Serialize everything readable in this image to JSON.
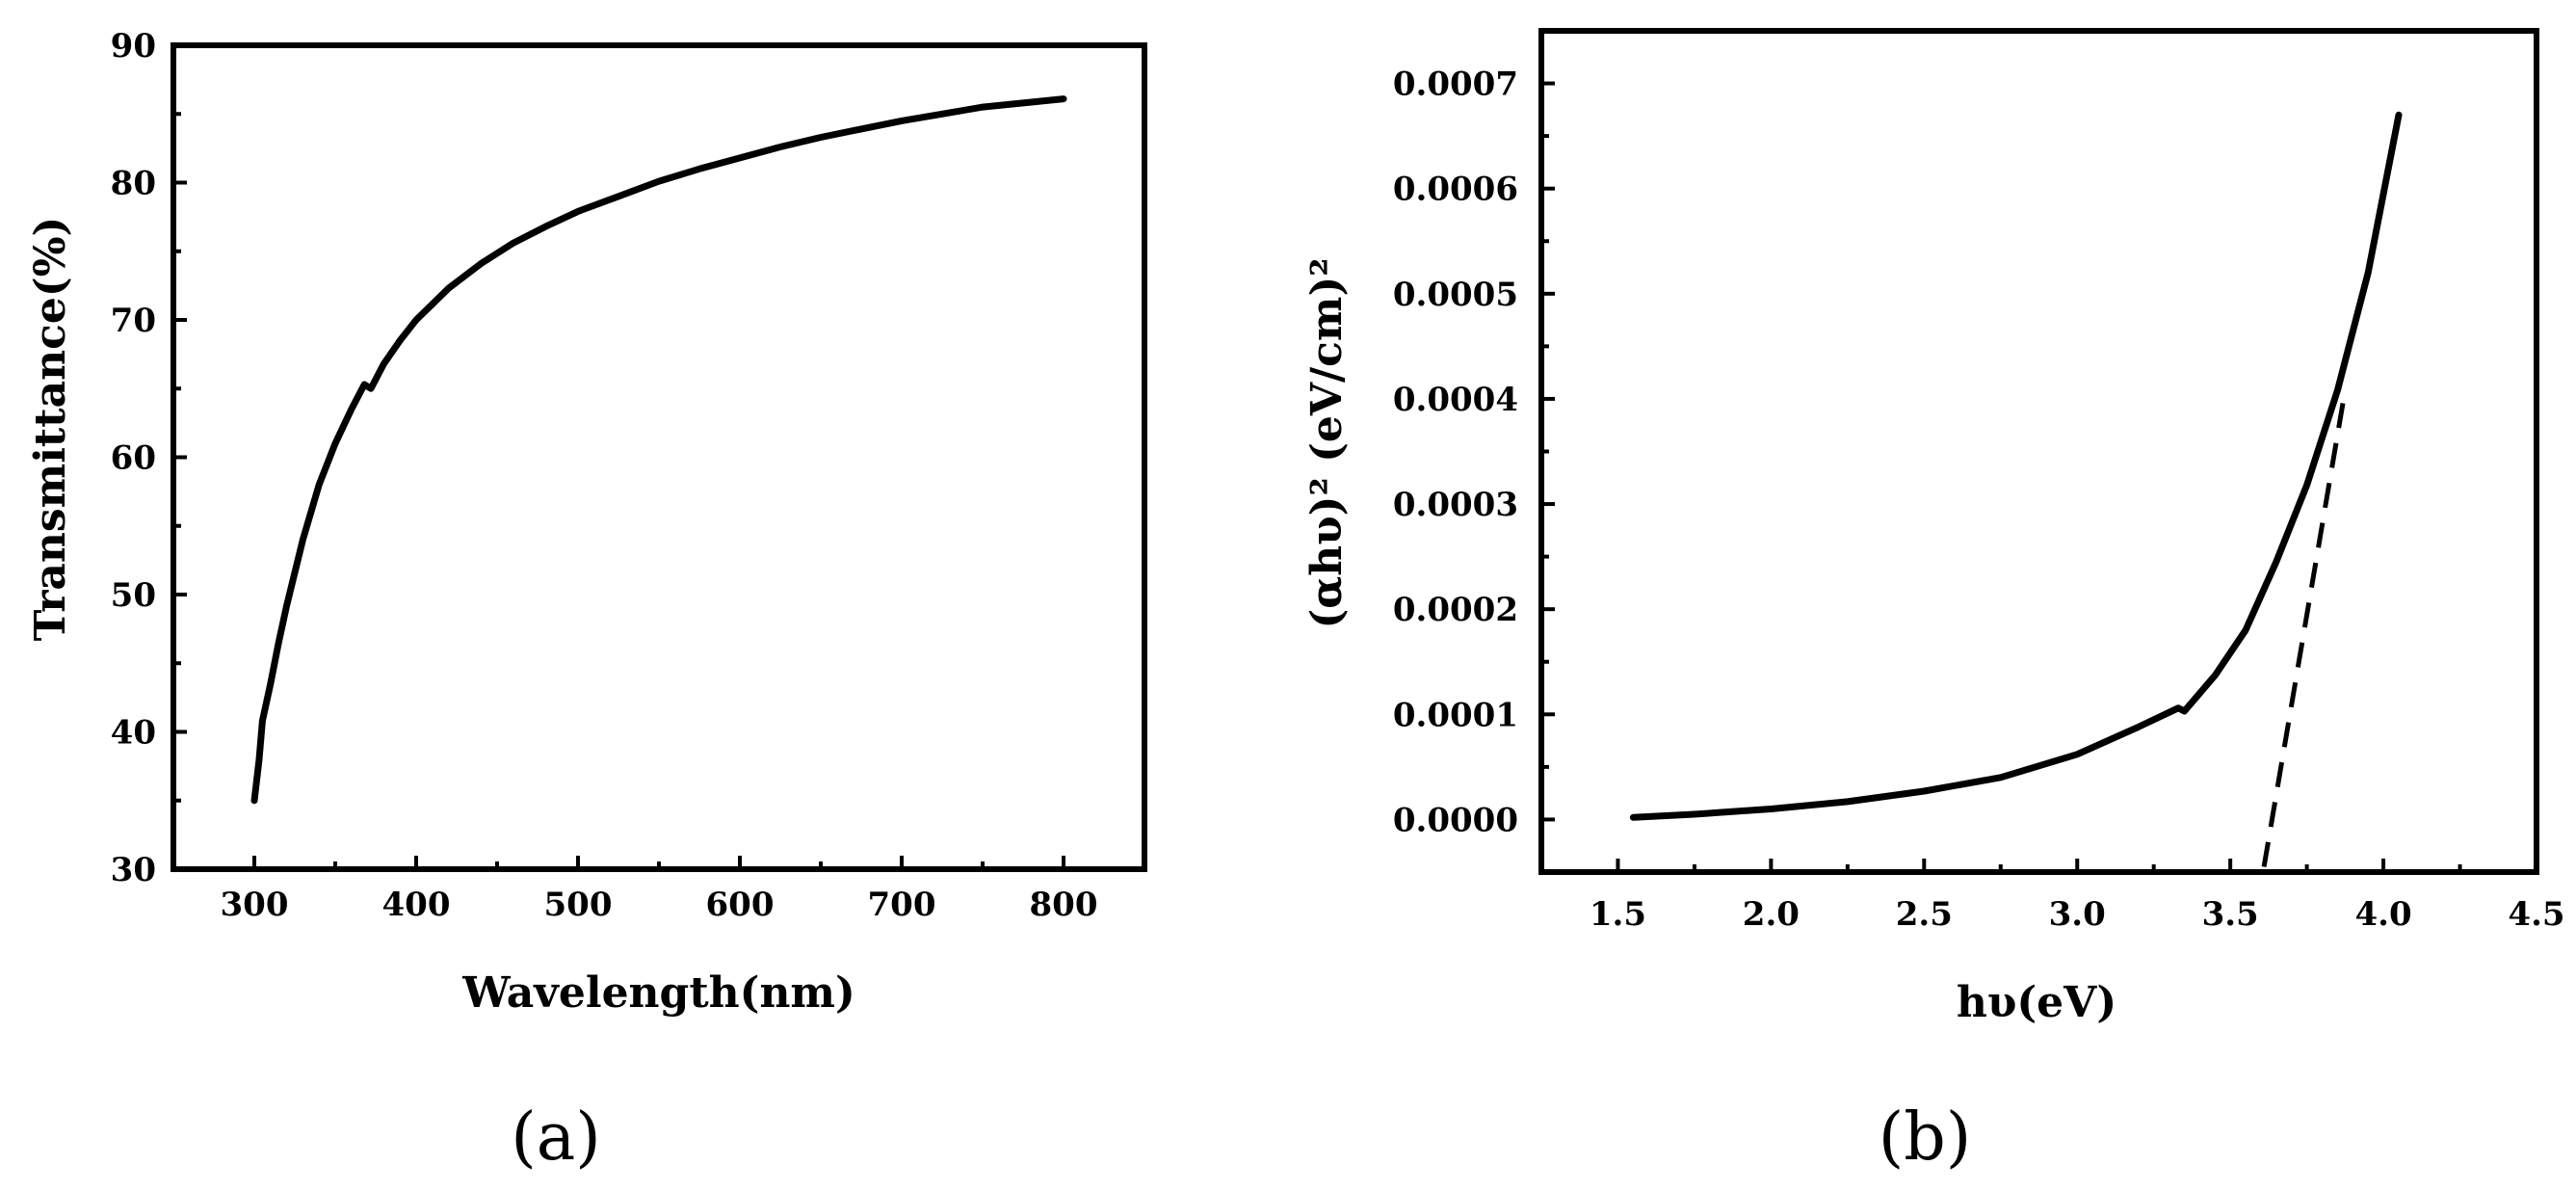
{
  "chart_data": [
    {
      "type": "line",
      "panel_label": "(a)",
      "xlabel": "Wavelength(nm)",
      "ylabel": "Transmittance(%)",
      "xlim": [
        250,
        850
      ],
      "ylim": [
        30,
        90
      ],
      "xticks": [
        300,
        400,
        500,
        600,
        700,
        800
      ],
      "yticks": [
        30,
        40,
        50,
        60,
        70,
        80,
        90
      ],
      "grid": false,
      "series": [
        {
          "style": "solid",
          "color": "#000000",
          "x": [
            300,
            303,
            305,
            310,
            315,
            320,
            330,
            340,
            350,
            360,
            368,
            372,
            380,
            390,
            400,
            420,
            440,
            460,
            480,
            500,
            525,
            550,
            575,
            600,
            625,
            650,
            675,
            700,
            725,
            750,
            775,
            800
          ],
          "y": [
            35.0,
            38.0,
            40.8,
            43.5,
            46.5,
            49.2,
            54.0,
            58.0,
            61.0,
            63.5,
            65.3,
            65.0,
            66.8,
            68.5,
            70.0,
            72.3,
            74.1,
            75.6,
            76.8,
            77.9,
            79.0,
            80.1,
            81.0,
            81.8,
            82.6,
            83.3,
            83.9,
            84.5,
            85.0,
            85.5,
            85.8,
            86.1
          ]
        }
      ]
    },
    {
      "type": "line",
      "panel_label": "(b)",
      "xlabel": "hυ(eV)",
      "ylabel": "(αhυ)² (eV/cm)²",
      "xlim": [
        1.25,
        4.5
      ],
      "ylim": [
        -5e-05,
        0.00075
      ],
      "xticks": [
        "1.5",
        "2.0",
        "2.5",
        "3.0",
        "3.5",
        "4.0",
        "4.5"
      ],
      "yticks": [
        "0.0000",
        "0.0001",
        "0.0002",
        "0.0003",
        "0.0004",
        "0.0005",
        "0.0006",
        "0.0007"
      ],
      "grid": false,
      "series": [
        {
          "style": "solid",
          "color": "#000000",
          "x": [
            1.55,
            1.75,
            2.0,
            2.25,
            2.5,
            2.75,
            3.0,
            3.2,
            3.33,
            3.35,
            3.45,
            3.55,
            3.65,
            3.75,
            3.85,
            3.95,
            4.05
          ],
          "y": [
            2e-06,
            5e-06,
            1e-05,
            1.7e-05,
            2.7e-05,
            4e-05,
            6.2e-05,
            8.8e-05,
            0.000106,
            0.000103,
            0.000137,
            0.00018,
            0.000245,
            0.000318,
            0.000408,
            0.00052,
            0.00067
          ]
        },
        {
          "style": "dashed",
          "color": "#000000",
          "x": [
            3.61,
            3.87
          ],
          "y": [
            -4.5e-05,
            0.0004
          ]
        }
      ]
    }
  ]
}
